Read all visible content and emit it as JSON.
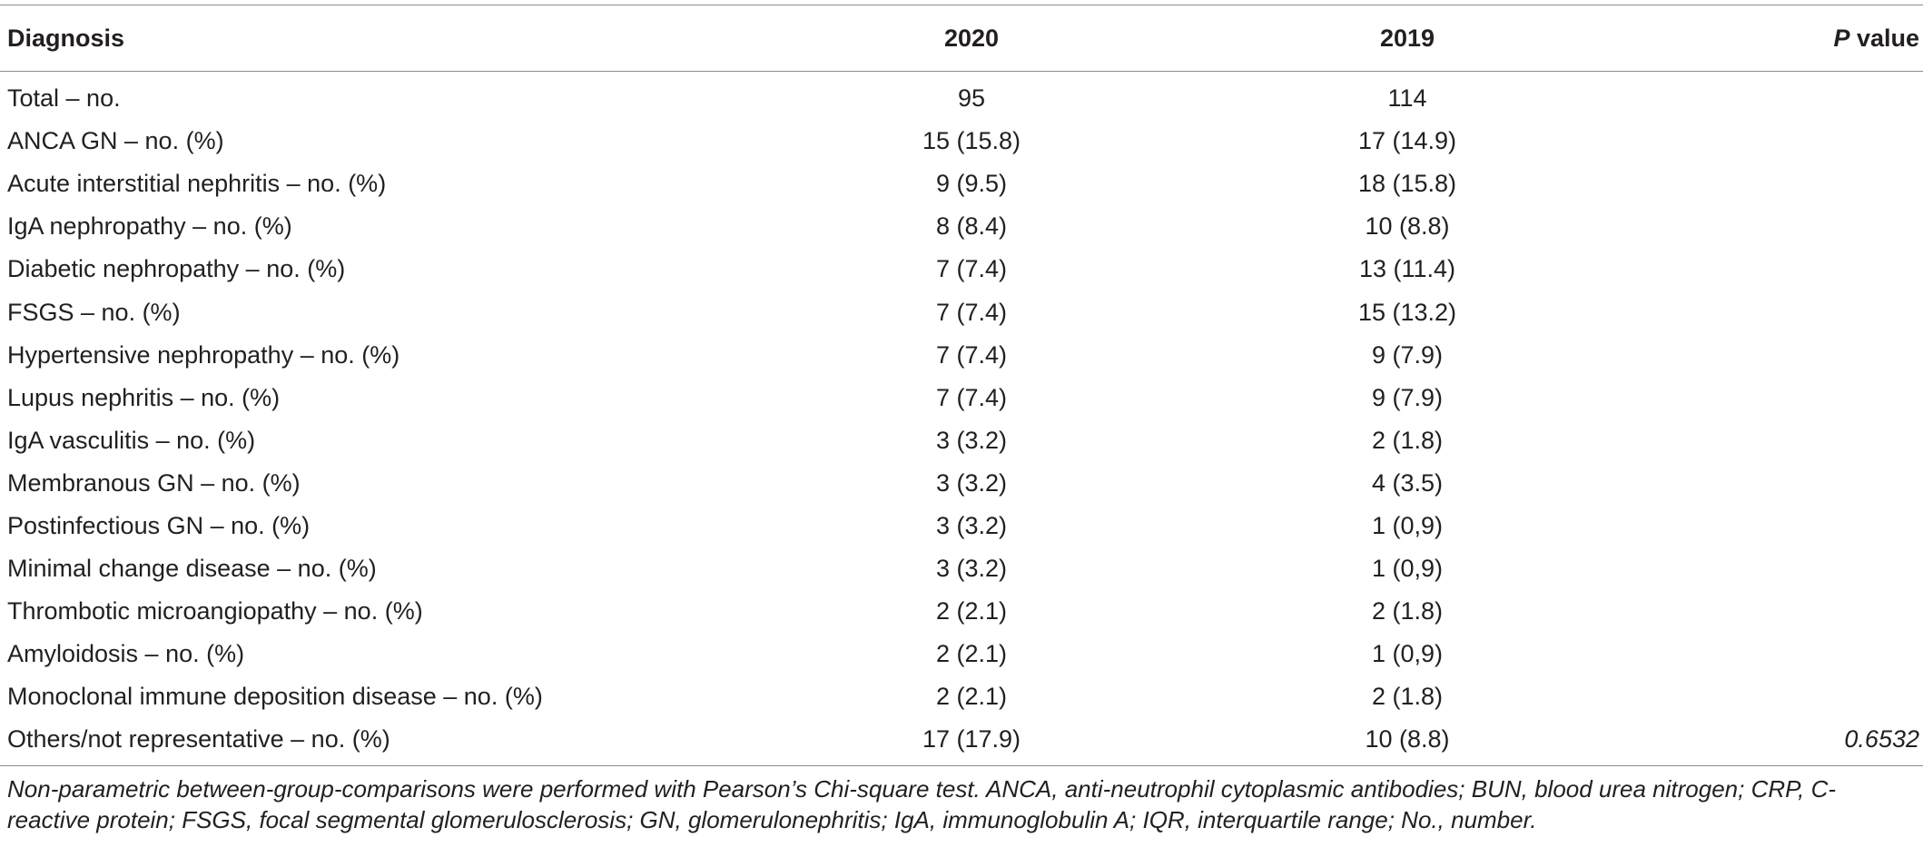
{
  "table": {
    "headers": {
      "diagnosis": "Diagnosis",
      "year_2020": "2020",
      "year_2019": "2019",
      "p_italic": "P",
      "p_rest": " value"
    },
    "rows": [
      {
        "diagnosis": "Total – no.",
        "y2020": "95",
        "y2019": "114",
        "p": ""
      },
      {
        "diagnosis": "ANCA GN – no. (%)",
        "y2020": "15 (15.8)",
        "y2019": "17 (14.9)",
        "p": ""
      },
      {
        "diagnosis": "Acute interstitial nephritis – no. (%)",
        "y2020": "9 (9.5)",
        "y2019": "18 (15.8)",
        "p": ""
      },
      {
        "diagnosis": "IgA nephropathy – no. (%)",
        "y2020": "8 (8.4)",
        "y2019": "10 (8.8)",
        "p": ""
      },
      {
        "diagnosis": "Diabetic nephropathy – no. (%)",
        "y2020": "7 (7.4)",
        "y2019": "13 (11.4)",
        "p": ""
      },
      {
        "diagnosis": "FSGS – no. (%)",
        "y2020": "7 (7.4)",
        "y2019": "15 (13.2)",
        "p": ""
      },
      {
        "diagnosis": "Hypertensive nephropathy – no. (%)",
        "y2020": "7 (7.4)",
        "y2019": "9 (7.9)",
        "p": ""
      },
      {
        "diagnosis": "Lupus nephritis – no. (%)",
        "y2020": "7 (7.4)",
        "y2019": "9 (7.9)",
        "p": ""
      },
      {
        "diagnosis": "IgA vasculitis – no. (%)",
        "y2020": "3 (3.2)",
        "y2019": "2 (1.8)",
        "p": ""
      },
      {
        "diagnosis": "Membranous GN – no. (%)",
        "y2020": "3 (3.2)",
        "y2019": "4 (3.5)",
        "p": ""
      },
      {
        "diagnosis": "Postinfectious GN – no. (%)",
        "y2020": "3 (3.2)",
        "y2019": "1 (0,9)",
        "p": ""
      },
      {
        "diagnosis": "Minimal change disease – no. (%)",
        "y2020": "3 (3.2)",
        "y2019": "1 (0,9)",
        "p": ""
      },
      {
        "diagnosis": "Thrombotic microangiopathy – no. (%)",
        "y2020": "2 (2.1)",
        "y2019": "2 (1.8)",
        "p": ""
      },
      {
        "diagnosis": "Amyloidosis – no. (%)",
        "y2020": "2 (2.1)",
        "y2019": "1 (0,9)",
        "p": ""
      },
      {
        "diagnosis": "Monoclonal immune deposition disease – no. (%)",
        "y2020": "2 (2.1)",
        "y2019": "2 (1.8)",
        "p": ""
      },
      {
        "diagnosis": "Others/not representative – no. (%)",
        "y2020": "17 (17.9)",
        "y2019": "10 (8.8)",
        "p": "0.6532"
      }
    ]
  },
  "footnote": "Non-parametric between-group-comparisons were performed with Pearson’s Chi-square test. ANCA, anti-neutrophil cytoplasmic antibodies; BUN, blood urea nitrogen; CRP, C-reactive protein; FSGS, focal segmental glomerulosclerosis; GN, glomerulonephritis; IgA, immunoglobulin A; IQR, interquartile range; No., number."
}
